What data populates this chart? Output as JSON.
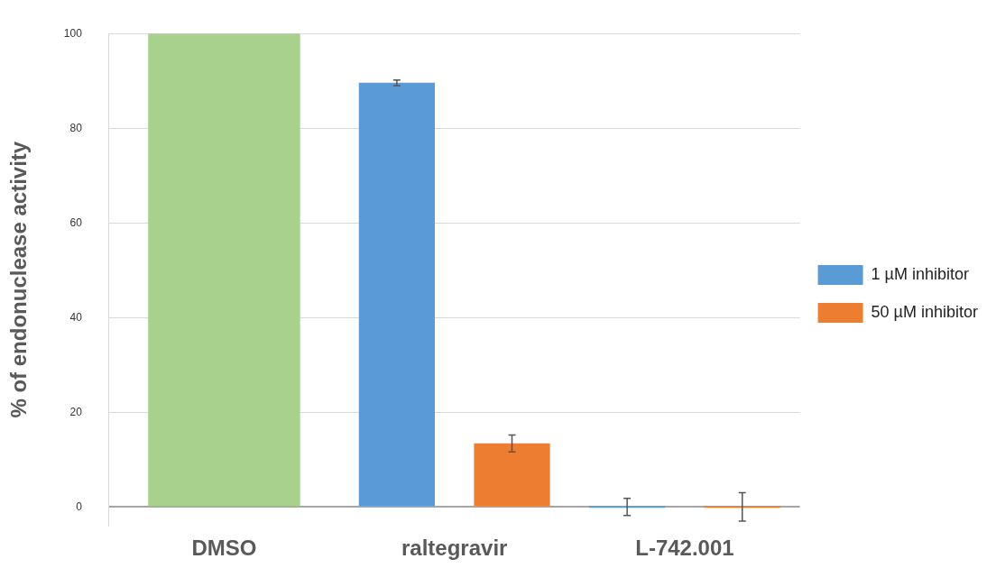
{
  "chart_data": {
    "type": "bar",
    "ylabel": "% of endonuclease activity",
    "categories": [
      "DMSO",
      "raltegravir",
      "L-742.001"
    ],
    "series": [
      {
        "color": "#a9d18e",
        "values": [
          100,
          null,
          null
        ]
      },
      {
        "name": "1 µM inhibitor",
        "color": "#5b9bd5",
        "values": [
          null,
          89.6,
          0
        ],
        "errors": [
          null,
          0.6,
          1.8
        ]
      },
      {
        "name": "50 µM inhibitor",
        "color": "#ed7d31",
        "values": [
          null,
          13.4,
          0
        ],
        "errors": [
          null,
          1.8,
          3
        ]
      }
    ],
    "ylim": [
      -4,
      100
    ],
    "yticks": [
      0,
      20,
      40,
      60,
      80,
      100
    ],
    "grid": "y",
    "legend": "right"
  }
}
